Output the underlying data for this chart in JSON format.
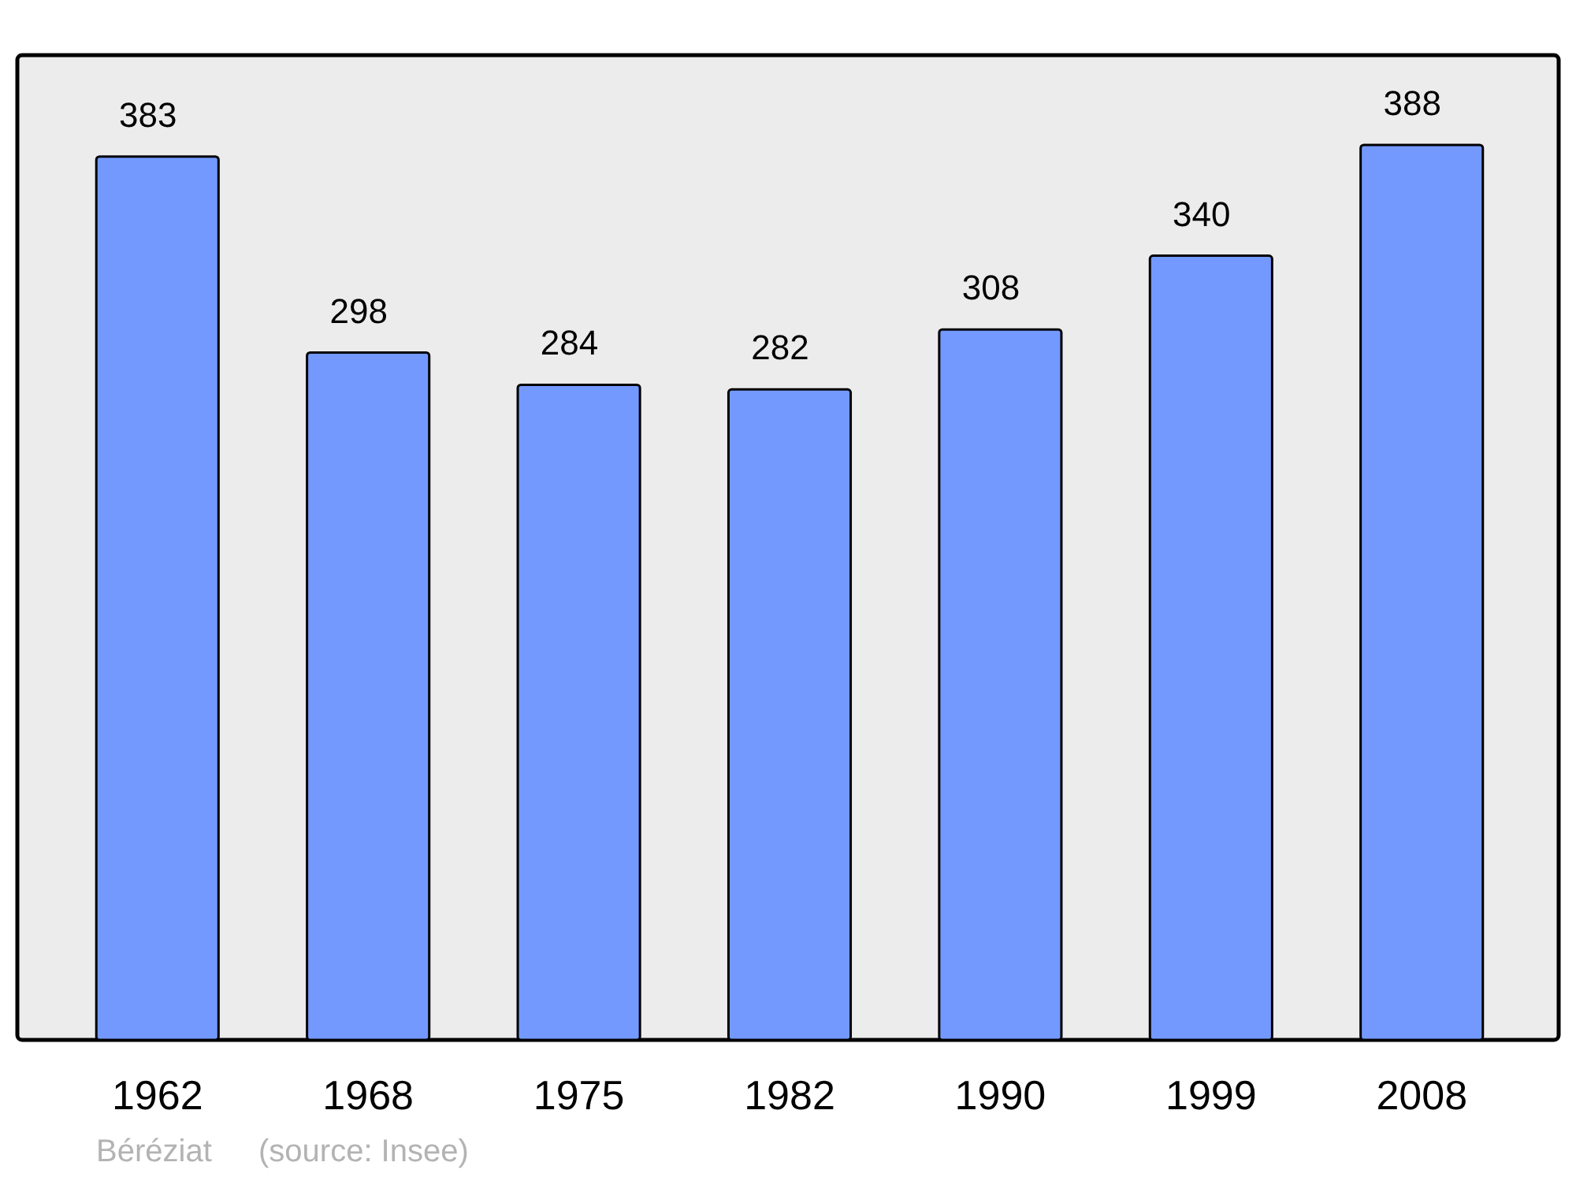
{
  "chart_data": {
    "type": "bar",
    "categories": [
      "1962",
      "1968",
      "1975",
      "1982",
      "1990",
      "1999",
      "2008"
    ],
    "values": [
      383,
      298,
      284,
      282,
      308,
      340,
      388
    ],
    "color": "#7399ff",
    "data_labels": true,
    "annotations": [
      "Béréziat",
      "(source: Insee)"
    ]
  }
}
